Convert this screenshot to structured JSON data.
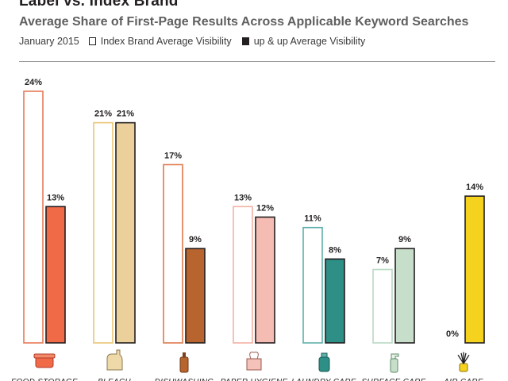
{
  "header": {
    "title": "Label vs. Index Brand",
    "subtitle": "Average Share of First-Page Results Across Applicable Keyword Searches",
    "date": "January 2015",
    "legend_index": "Index Brand Average Visibility",
    "legend_upup": "up & up Average Visibility"
  },
  "chart_data": {
    "type": "bar",
    "title": "Label vs. Index Brand",
    "subtitle": "Average Share of First-Page Results Across Applicable Keyword Searches",
    "categories": [
      "FOOD STORAGE",
      "BLEACH",
      "DISHWASHING",
      "PAPER HYGIENE",
      "LAUNDRY CARE",
      "SURFACE CARE",
      "AIR CARE"
    ],
    "series": [
      {
        "name": "Index Brand Average Visibility",
        "values": [
          24,
          21,
          17,
          13,
          11,
          7,
          0
        ]
      },
      {
        "name": "up & up Average Visibility",
        "values": [
          13,
          21,
          9,
          12,
          8,
          9,
          14
        ]
      }
    ],
    "value_labels_index": [
      "24%",
      "21%",
      "17%",
      "13%",
      "11%",
      "7%",
      "0%"
    ],
    "value_labels_upup": [
      "13%",
      "21%",
      "9%",
      "12%",
      "8%",
      "9%",
      "14%"
    ],
    "ylim": [
      0,
      24
    ],
    "grid": false,
    "legend_position": "top-left",
    "colors": {
      "outline": [
        "#e87a58",
        "#e9c574",
        "#e07a4c",
        "#f3b0a4",
        "#5fb0aa",
        "#b9d9c3",
        "#e0c23a"
      ],
      "fill": [
        "#f06a48",
        "#ebd09c",
        "#b8642e",
        "#f4bcb2",
        "#2e8f86",
        "#c7dfca",
        "#f5d21e"
      ],
      "ink": "#231f20"
    },
    "icons": [
      "food-storage-icon",
      "bleach-bottle-icon",
      "dish-soap-icon",
      "tissue-box-icon",
      "detergent-bottle-icon",
      "spray-bottle-icon",
      "reed-diffuser-icon"
    ]
  }
}
